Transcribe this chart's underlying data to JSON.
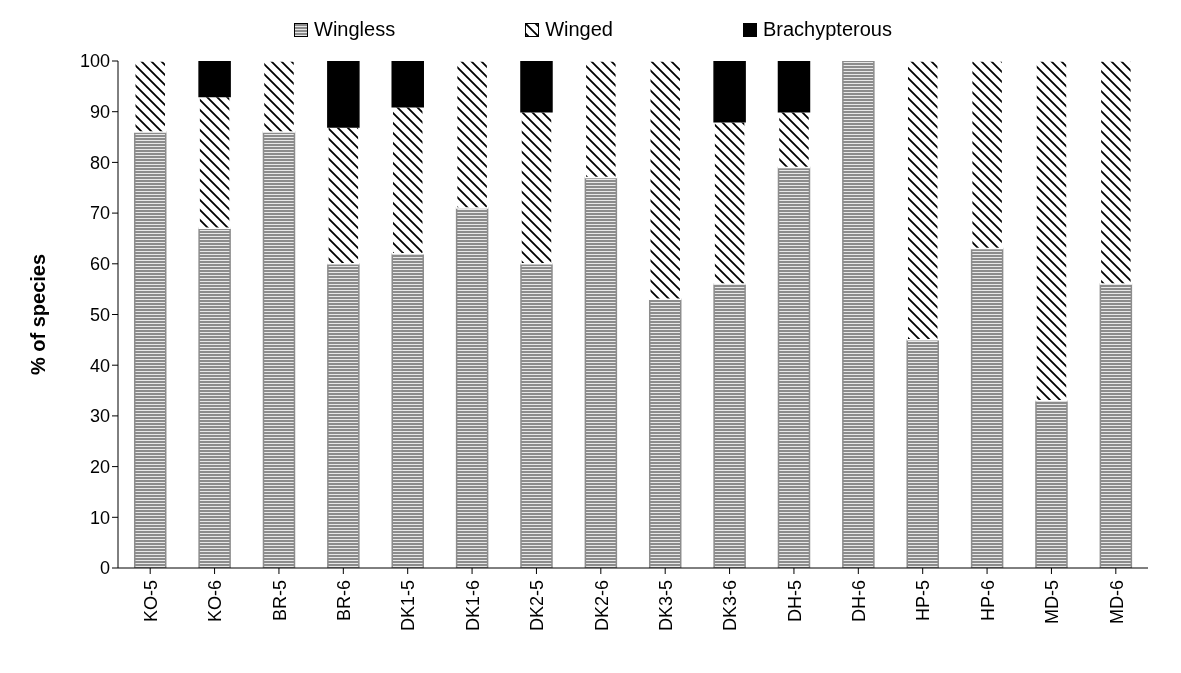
{
  "chart_data": {
    "type": "bar",
    "stacked": true,
    "ylabel": "% of species",
    "categories": [
      "KO-5",
      "KO-6",
      "BR-5",
      "BR-6",
      "DK1-5",
      "DK1-6",
      "DK2-5",
      "DK2-6",
      "DK3-5",
      "DK3-6",
      "DH-5",
      "DH-6",
      "HP-5",
      "HP-6",
      "MD-5",
      "MD-6"
    ],
    "series": [
      {
        "name": "Wingless",
        "color": "#8c8c8c",
        "values": [
          86,
          67,
          86,
          60,
          62,
          71,
          60,
          77,
          53,
          56,
          79,
          100,
          45,
          63,
          33,
          56
        ]
      },
      {
        "name": "Winged",
        "color": "#ffffff",
        "values": [
          14,
          26,
          14,
          27,
          29,
          29,
          30,
          23,
          47,
          32,
          11,
          0,
          55,
          37,
          67,
          44
        ]
      },
      {
        "name": "Brachypterous",
        "color": "#000000",
        "values": [
          0,
          7,
          0,
          13,
          9,
          0,
          10,
          0,
          0,
          12,
          10,
          0,
          0,
          0,
          0,
          0
        ]
      }
    ],
    "ylim": [
      0,
      100
    ],
    "yticks": [
      0,
      10,
      20,
      30,
      40,
      50,
      60,
      70,
      80,
      90,
      100
    ],
    "grid": false,
    "legend": "top"
  }
}
